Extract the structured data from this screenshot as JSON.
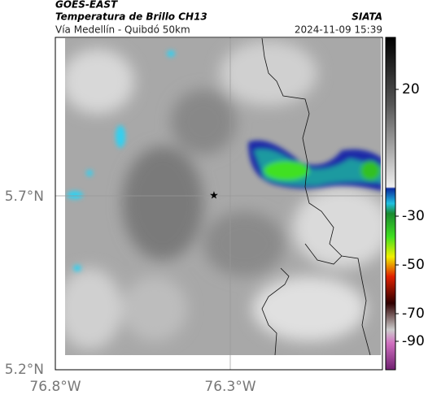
{
  "header": {
    "title": "GOES-EAST",
    "subtitle": "Temperatura de Brillo CH13",
    "source": "SIATA",
    "region": "Vía Medellín - Quibdó 50km",
    "timestamp": "2024-11-09 15:39"
  },
  "map": {
    "lat_labels": [
      "5.7°N",
      "5.2°N"
    ],
    "lon_labels": [
      "76.8°W",
      "76.3°W"
    ]
  },
  "colorbar": {
    "ticks": [
      20,
      -30,
      -50,
      -70,
      -90
    ]
  }
}
